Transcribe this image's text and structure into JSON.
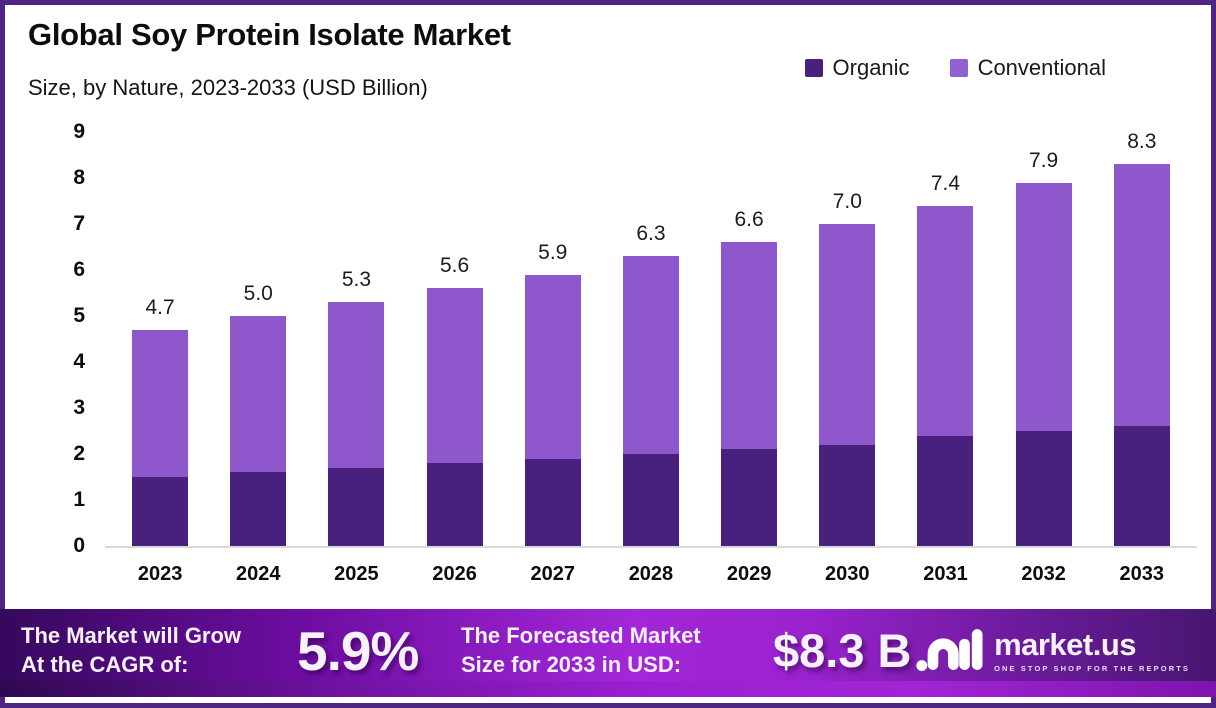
{
  "frame": {
    "border_color": "#4E2583"
  },
  "header": {
    "title": "Global Soy Protein Isolate Market",
    "subtitle": "Size, by Nature, 2023-2033 (USD Billion)"
  },
  "legend": {
    "items": [
      {
        "label": "Organic",
        "color": "#48207D"
      },
      {
        "label": "Conventional",
        "color": "#9161D1"
      }
    ]
  },
  "chart_data": {
    "type": "bar",
    "stacked": true,
    "title": "Global Soy Protein Isolate Market",
    "subtitle": "Size, by Nature, 2023-2033 (USD Billion)",
    "categories": [
      "2023",
      "2024",
      "2025",
      "2026",
      "2027",
      "2028",
      "2029",
      "2030",
      "2031",
      "2032",
      "2033"
    ],
    "series": [
      {
        "name": "Organic",
        "color": "#48207D",
        "values": [
          1.5,
          1.6,
          1.7,
          1.8,
          1.9,
          2.0,
          2.1,
          2.2,
          2.4,
          2.5,
          2.6
        ]
      },
      {
        "name": "Conventional",
        "color": "#8E57CC",
        "values": [
          3.2,
          3.4,
          3.6,
          3.8,
          4.0,
          4.3,
          4.5,
          4.8,
          5.0,
          5.4,
          5.7
        ]
      }
    ],
    "totals": [
      4.7,
      5.0,
      5.3,
      5.6,
      5.9,
      6.3,
      6.6,
      7.0,
      7.4,
      7.9,
      8.3
    ],
    "total_labels": [
      "4.7",
      "5.0",
      "5.3",
      "5.6",
      "5.9",
      "6.3",
      "6.6",
      "7.0",
      "7.4",
      "7.9",
      "8.3"
    ],
    "ylabel": "",
    "xlabel": "",
    "ylim": [
      0,
      9
    ],
    "yticks": [
      0,
      1,
      2,
      3,
      4,
      5,
      6,
      7,
      8,
      9
    ],
    "grid": false,
    "legend_position": "top-right"
  },
  "footer": {
    "cagr_label_line1": "The Market will Grow",
    "cagr_label_line2": "At the CAGR of:",
    "cagr_value": "5.9%",
    "forecast_label_line1": "The Forecasted Market",
    "forecast_label_line2": "Size for 2033 in USD:",
    "forecast_value": "$8.3 B",
    "brand_name": "market.us",
    "brand_tagline": "ONE STOP SHOP FOR THE REPORTS"
  }
}
